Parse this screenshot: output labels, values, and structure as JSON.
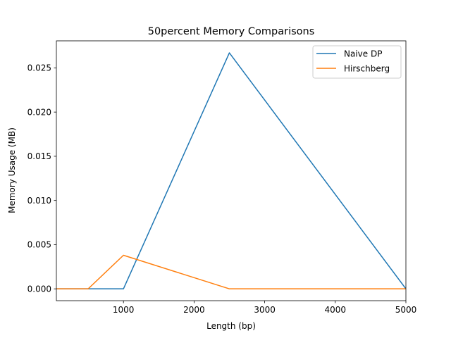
{
  "chart_data": {
    "type": "line",
    "title": "50percent Memory Comparisons",
    "xlabel": "Length (bp)",
    "ylabel": "Memory Usage (MB)",
    "xlim": [
      50,
      5000
    ],
    "ylim": [
      -0.00134,
      0.02806
    ],
    "xticks": [
      1000,
      2000,
      3000,
      4000,
      5000
    ],
    "xtick_labels": [
      "1000",
      "2000",
      "3000",
      "4000",
      "5000"
    ],
    "yticks": [
      0.0,
      0.005,
      0.01,
      0.015,
      0.02,
      0.025
    ],
    "ytick_labels": [
      "0.000",
      "0.005",
      "0.010",
      "0.015",
      "0.020",
      "0.025"
    ],
    "grid": false,
    "legend_position": "top-right",
    "series": [
      {
        "name": "Naive DP",
        "color": "#1f77b4",
        "x": [
          50,
          500,
          1000,
          2500,
          5000
        ],
        "y": [
          0.0,
          0.0,
          0.0,
          0.0267,
          0.0
        ]
      },
      {
        "name": "Hirschberg",
        "color": "#ff7f0e",
        "x": [
          50,
          500,
          1000,
          2500,
          5000
        ],
        "y": [
          0.0,
          0.0,
          0.0038,
          0.0,
          0.0
        ]
      }
    ]
  }
}
